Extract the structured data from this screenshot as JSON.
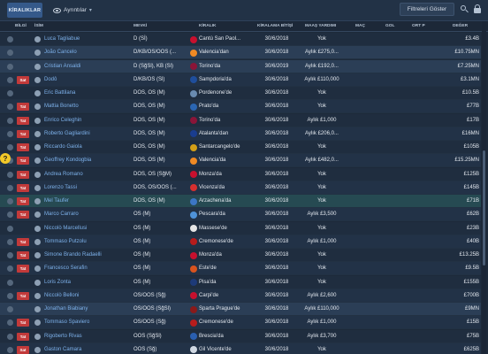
{
  "toolbar": {
    "tab_label": "KİRALIKLAR",
    "views_label": "Ayrıntılar",
    "filter_label": "Filtreleri Göster"
  },
  "columns": {
    "bilgi": "BİLGİ",
    "isim": "İSİM",
    "mevki": "MEVKİ",
    "kiralik": "KİRALIK",
    "bitis": "KİRALAMA BİTİŞİ",
    "maas": "MAAŞ YARDIMI",
    "mac": "MAÇ",
    "gol": "GOL",
    "ort": "ORT P",
    "deger": "DEĞER"
  },
  "help_label": "?",
  "colors": {
    "tag_red": "#c23a3a",
    "tag_green": "#4b8a4f",
    "name_link": "#7db1ea"
  },
  "rows": [
    {
      "tag": "",
      "name": "Luca Tagliabue",
      "pos": "D (Sİ)",
      "club": "Cantù San Paol...",
      "date": "30/6/2018",
      "wage": "Yok",
      "value": "£3.4B",
      "badge": "#c8102e"
    },
    {
      "tag": "",
      "name": "João Cancelo",
      "pos": "D/KB/OS/OOS (...",
      "club": "Valencia'dan",
      "date": "30/6/2018",
      "wage": "Aylık £275,0...",
      "value": "£10.75MN",
      "badge": "#f08a24"
    },
    {
      "tag": "",
      "name": "Cristian Ansaldi",
      "pos": "D (SğSl), KB (Sl)",
      "club": "Torino'da",
      "date": "30/6/2019",
      "wage": "Aylık £192,0...",
      "value": "£7.25MN",
      "badge": "#8a1538"
    },
    {
      "tag": "Sat",
      "name": "Dodô",
      "pos": "D/KB/OS (Sl)",
      "club": "Sampdoria'da",
      "date": "30/6/2018",
      "wage": "Aylık £110,000",
      "value": "£3.1MN",
      "badge": "#1f4e9c"
    },
    {
      "tag": "",
      "name": "Eric Battilana",
      "pos": "DOS, OS (M)",
      "club": "Pordenone'de",
      "date": "30/6/2018",
      "wage": "Yok",
      "value": "£10.5B",
      "badge": "#6a8bb0"
    },
    {
      "tag": "Tat",
      "name": "Mattia Bonetto",
      "pos": "DOS, OS (M)",
      "club": "Prato'da",
      "date": "30/6/2018",
      "wage": "Yok",
      "value": "£77B",
      "badge": "#2b66b3"
    },
    {
      "tag": "Tat",
      "name": "Enrico Celeghin",
      "pos": "DOS, OS (M)",
      "club": "Torino'da",
      "date": "30/6/2018",
      "wage": "Aylık £1,000",
      "value": "£17B",
      "badge": "#8a1538"
    },
    {
      "tag": "Tat",
      "name": "Roberto Gagliardini",
      "pos": "DOS, OS (M)",
      "club": "Atalanta'dan",
      "date": "30/6/2018",
      "wage": "Aylık £206,0...",
      "value": "£16MN",
      "badge": "#1a3d8f"
    },
    {
      "tag": "Tat",
      "name": "Riccardo Gaiola",
      "pos": "DOS, OS (M)",
      "club": "Santarcangelo'de",
      "date": "30/6/2018",
      "wage": "Yok",
      "value": "£105B",
      "badge": "#d4a017"
    },
    {
      "tag": "Tat",
      "name": "Geoffrey Kondogbia",
      "pos": "DOS, OS (M)",
      "club": "Valencia'da",
      "date": "30/6/2018",
      "wage": "Aylık £482,0...",
      "value": "£15.25MN",
      "badge": "#f08a24"
    },
    {
      "tag": "Tat",
      "name": "Andrea Romano",
      "pos": "DOS, OS (SğM)",
      "club": "Monza'da",
      "date": "30/6/2018",
      "wage": "Yok",
      "value": "£125B",
      "badge": "#c8102e"
    },
    {
      "tag": "Tat",
      "name": "Lorenzo Tassi",
      "pos": "DOS, OS/OOS (...",
      "club": "Vicenza'da",
      "date": "30/6/2018",
      "wage": "Yok",
      "value": "£145B",
      "badge": "#d62f2f"
    },
    {
      "tag": "Tat",
      "name": "Mel Taufer",
      "pos": "DOS, OS (M)",
      "club": "Arzachena'da",
      "date": "30/6/2018",
      "wage": "Yok",
      "value": "£71B",
      "badge": "#3c76c4"
    },
    {
      "tag": "Tat",
      "name": "Marco Carraro",
      "pos": "OS (M)",
      "club": "Pescara'da",
      "date": "30/6/2018",
      "wage": "Aylık £3,500",
      "value": "£62B",
      "badge": "#4f93d9"
    },
    {
      "tag": "",
      "name": "Niccolò Marcellusi",
      "pos": "OS (M)",
      "club": "Massese'de",
      "date": "30/6/2018",
      "wage": "Yok",
      "value": "£23B",
      "badge": "#e6e6e6"
    },
    {
      "tag": "Tat",
      "name": "Tommaso Putzolu",
      "pos": "OS (M)",
      "club": "Cremonese'de",
      "date": "30/6/2018",
      "wage": "Aylık £1,000",
      "value": "£40B",
      "badge": "#b71c1c"
    },
    {
      "tag": "Tat",
      "name": "Simone Brando Radaelli",
      "pos": "OS (M)",
      "club": "Monza'da",
      "date": "30/6/2018",
      "wage": "Yok",
      "value": "£13.25B",
      "badge": "#c8102e"
    },
    {
      "tag": "Tat",
      "name": "Francesco Serafin",
      "pos": "OS (M)",
      "club": "Este'de",
      "date": "30/6/2018",
      "wage": "Yok",
      "value": "£9.5B",
      "badge": "#d9531e"
    },
    {
      "tag": "",
      "name": "Loris Zonta",
      "pos": "OS (M)",
      "club": "Pisa'da",
      "date": "30/6/2018",
      "wage": "Yok",
      "value": "£155B",
      "badge": "#1d3a78"
    },
    {
      "tag": "Tat",
      "name": "Niccolò Belloni",
      "pos": "OS/OOS (Sğ)",
      "club": "Carpi'de",
      "date": "30/6/2018",
      "wage": "Aylık £2,600",
      "value": "£700B",
      "badge": "#c8102e"
    },
    {
      "tag": "",
      "name": "Jonathan Biabiany",
      "pos": "OS/OOS (SğSl)",
      "club": "Sparta Prague'de",
      "date": "30/6/2018",
      "wage": "Aylık £110,000",
      "value": "£9MN",
      "badge": "#8a1a1a"
    },
    {
      "tag": "Tat",
      "name": "Tommaso Spaviero",
      "pos": "OS/OOS (Sğ)",
      "club": "Cremonese'de",
      "date": "30/6/2018",
      "wage": "Aylık £1,000",
      "value": "£15B",
      "badge": "#b71c1c"
    },
    {
      "tag": "Tat",
      "name": "Rigoberto Rivas",
      "pos": "OOS (SğSl)",
      "club": "Brescia'da",
      "date": "30/6/2018",
      "wage": "Aylık £3,700",
      "value": "£75B",
      "badge": "#2a5fb0"
    },
    {
      "tag": "Sat",
      "name": "Gaston Camara",
      "pos": "OOS (Sğ)",
      "club": "Gil Vicente'de",
      "date": "30/6/2018",
      "wage": "Yok",
      "value": "£625B",
      "badge": "#d0d8e2"
    }
  ]
}
